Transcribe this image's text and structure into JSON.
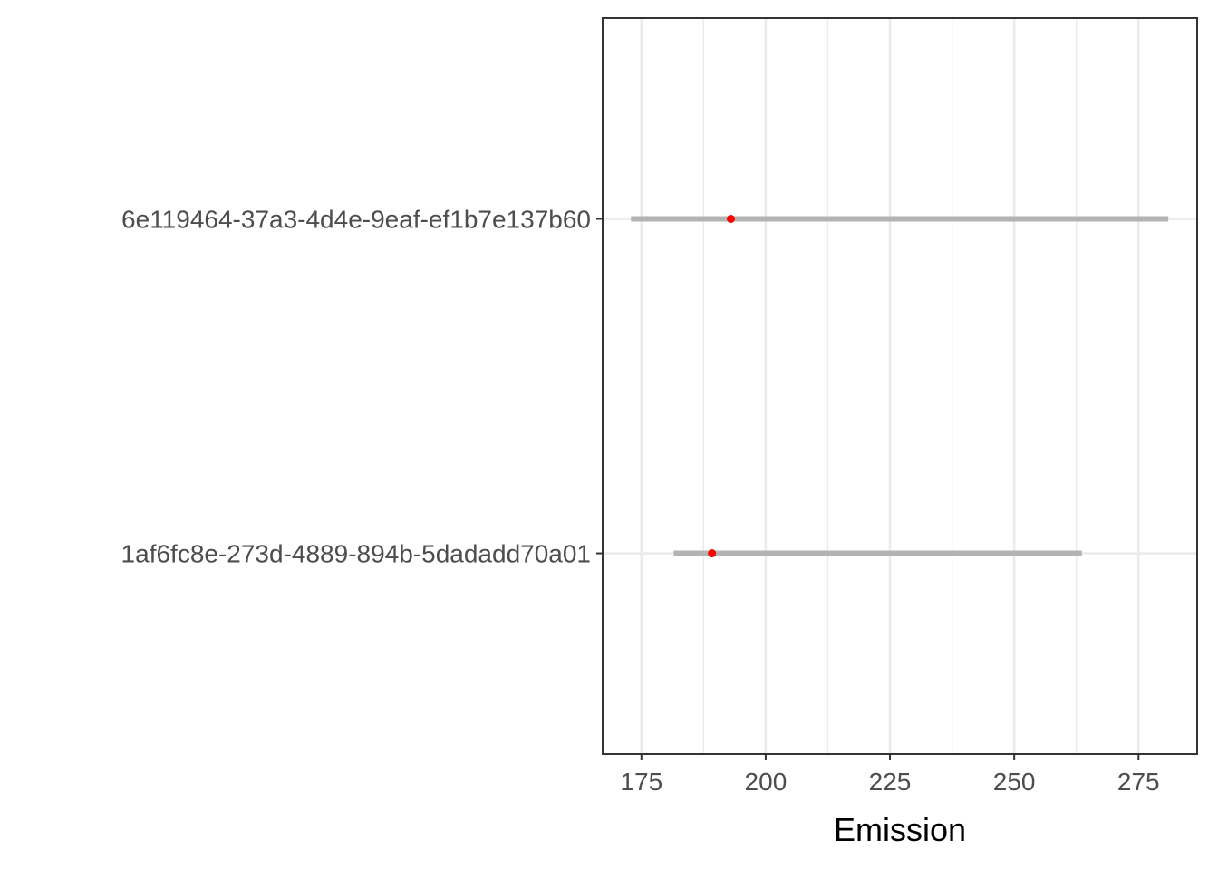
{
  "chart_data": {
    "type": "interval",
    "xlabel": "Emission",
    "ylabel": "",
    "xlim": [
      167.2,
      286.8
    ],
    "x_ticks": [
      175,
      200,
      225,
      250,
      275
    ],
    "x_minor_ticks": [
      187.5,
      212.5,
      237.5,
      262.5
    ],
    "grid": true,
    "categories": [
      "1af6fc8e-273d-4889-894b-5dadadd70a01",
      "6e119464-37a3-4d4e-9eaf-ef1b7e137b60"
    ],
    "intervals": [
      {
        "category": "1af6fc8e-273d-4889-894b-5dadadd70a01",
        "low": 181.5,
        "high": 263.6,
        "point": 189.2
      },
      {
        "category": "6e119464-37a3-4d4e-9eaf-ef1b7e137b60",
        "low": 172.9,
        "high": 281.0,
        "point": 193.0
      }
    ],
    "colors": {
      "interval": "#b3b3b3",
      "point": "#ff0000",
      "grid": "#ebebeb",
      "panel_border": "#333333"
    }
  }
}
